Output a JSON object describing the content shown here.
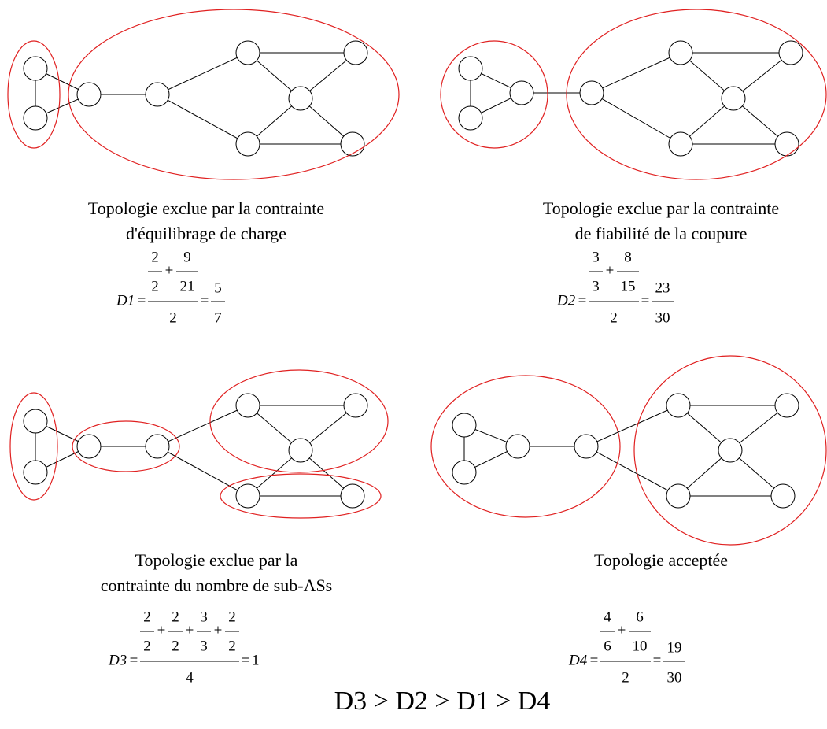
{
  "symbols": {
    "plus": "+",
    "equals": "="
  },
  "panels": [
    {
      "caption": [
        "Topologie exclue par la contrainte",
        "d'équilibrage de charge"
      ],
      "formula": {
        "name": "D1",
        "terms": [
          {
            "num": 2,
            "den": 2
          },
          {
            "num": 9,
            "den": 21
          }
        ],
        "divisor": 2,
        "result": {
          "num": 5,
          "den": 7
        }
      }
    },
    {
      "caption": [
        "Topologie exclue par la contrainte",
        "de fiabilité de la coupure"
      ],
      "formula": {
        "name": "D2",
        "terms": [
          {
            "num": 3,
            "den": 3
          },
          {
            "num": 8,
            "den": 15
          }
        ],
        "divisor": 2,
        "result": {
          "num": 23,
          "den": 30
        }
      }
    },
    {
      "caption": [
        "Topologie exclue par la",
        "contrainte du nombre de sub-ASs"
      ],
      "formula": {
        "name": "D3",
        "terms": [
          {
            "num": 2,
            "den": 2
          },
          {
            "num": 2,
            "den": 2
          },
          {
            "num": 3,
            "den": 3
          },
          {
            "num": 2,
            "den": 2
          }
        ],
        "divisor": 4,
        "result": 1
      }
    },
    {
      "caption": [
        "Topologie acceptée"
      ],
      "formula": {
        "name": "D4",
        "terms": [
          {
            "num": 4,
            "den": 6
          },
          {
            "num": 6,
            "den": 10
          }
        ],
        "divisor": 2,
        "result": {
          "num": 19,
          "den": 30
        }
      }
    }
  ],
  "summary": "D3 > D2 > D1 > D4"
}
